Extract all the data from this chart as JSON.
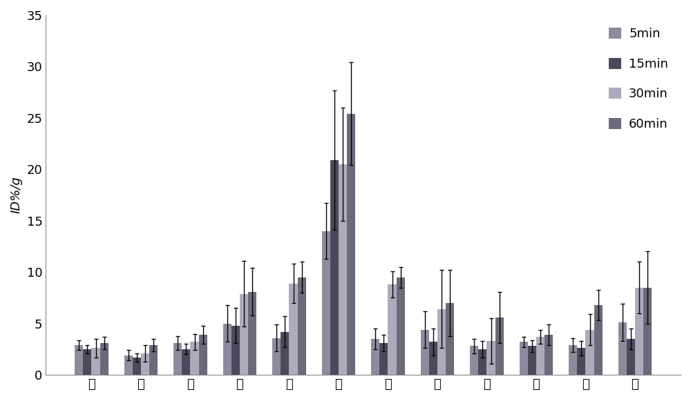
{
  "categories": [
    "血",
    "脑",
    "心",
    "肊",
    "肝",
    "胰",
    "肾",
    "脾",
    "肠",
    "肌",
    "胃",
    "骨"
  ],
  "series_labels": [
    "5min",
    "15min",
    "30min",
    "60min"
  ],
  "bar_colors": [
    "#8C8C9E",
    "#4A4A5A",
    "#ABABBB",
    "#6A6A7A"
  ],
  "values": [
    [
      2.9,
      2.5,
      2.6,
      3.1
    ],
    [
      1.9,
      1.7,
      2.1,
      2.9
    ],
    [
      3.1,
      2.5,
      3.2,
      3.9
    ],
    [
      5.0,
      4.8,
      7.9,
      8.1
    ],
    [
      3.6,
      4.2,
      8.9,
      9.5
    ],
    [
      14.0,
      20.9,
      20.5,
      25.4
    ],
    [
      3.5,
      3.1,
      8.8,
      9.5
    ],
    [
      4.4,
      3.2,
      6.4,
      7.0
    ],
    [
      2.8,
      2.5,
      3.3,
      5.6
    ],
    [
      3.2,
      2.8,
      3.7,
      3.9
    ],
    [
      2.9,
      2.6,
      4.4,
      6.8
    ],
    [
      5.1,
      3.5,
      8.5,
      8.5
    ]
  ],
  "errors": [
    [
      0.5,
      0.4,
      0.9,
      0.6
    ],
    [
      0.5,
      0.4,
      0.8,
      0.6
    ],
    [
      0.7,
      0.5,
      0.8,
      0.9
    ],
    [
      1.8,
      1.7,
      3.2,
      2.3
    ],
    [
      1.3,
      1.5,
      1.9,
      1.5
    ],
    [
      2.7,
      6.8,
      5.5,
      5.0
    ],
    [
      1.0,
      0.8,
      1.3,
      1.0
    ],
    [
      1.8,
      1.3,
      3.8,
      3.2
    ],
    [
      0.7,
      0.8,
      2.2,
      2.5
    ],
    [
      0.5,
      0.6,
      0.7,
      1.0
    ],
    [
      0.7,
      0.7,
      1.5,
      1.5
    ],
    [
      1.8,
      1.0,
      2.5,
      3.5
    ]
  ],
  "ylabel": "ID%/g",
  "ylim": [
    0,
    35
  ],
  "yticks": [
    0,
    5,
    10,
    15,
    20,
    25,
    30,
    35
  ],
  "figsize": [
    10.0,
    5.81
  ],
  "dpi": 100,
  "background_color": "#FFFFFF",
  "legend_fontsize": 13,
  "tick_fontsize": 13,
  "ylabel_fontsize": 13
}
